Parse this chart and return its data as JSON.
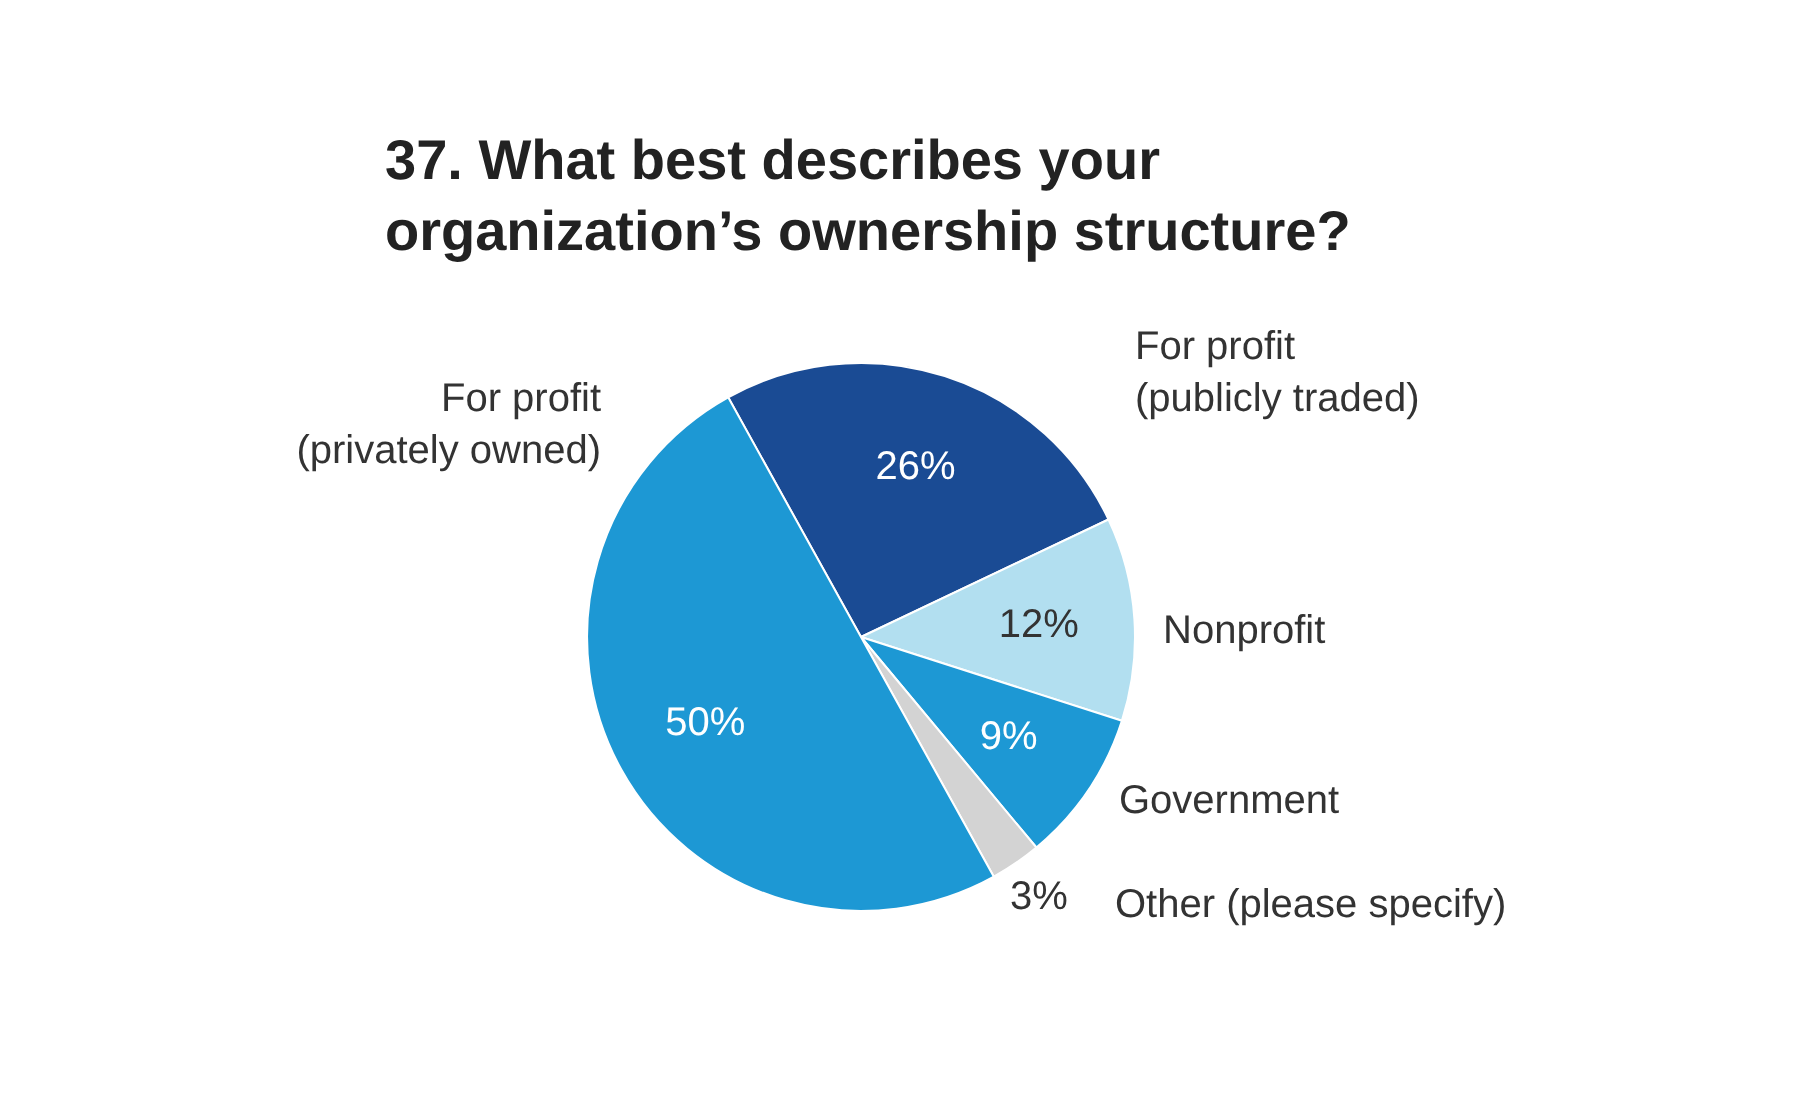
{
  "chart_data": {
    "type": "pie",
    "title": "37. What best describes your\norganization’s ownership structure?",
    "categories": [
      "For profit\n(publicly traded)",
      "Nonprofit",
      "Government",
      "Other (please specify)",
      "For profit\n(privately owned)"
    ],
    "values": [
      26,
      12,
      9,
      3,
      50
    ],
    "value_labels": [
      "26%",
      "12%",
      "9%",
      "3%",
      "50%"
    ],
    "colors": [
      "#1a4b94",
      "#b2dff0",
      "#1d98d4",
      "#d3d3d3",
      "#1d98d4"
    ]
  }
}
